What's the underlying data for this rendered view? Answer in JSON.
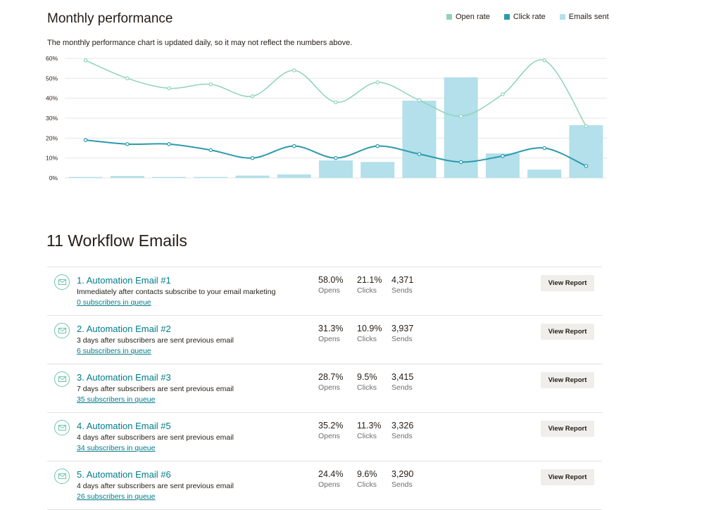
{
  "performance": {
    "title": "Monthly performance",
    "note": "The monthly performance chart is updated daily, so it may not reflect the numbers above."
  },
  "legend": [
    {
      "label": "Open rate",
      "color": "#8fd3bd"
    },
    {
      "label": "Click rate",
      "color": "#2b9aae"
    },
    {
      "label": "Emails sent",
      "color": "#b3e0ea"
    }
  ],
  "chart_data": {
    "type": "bar",
    "y_tick_labels": [
      "0%",
      "10%",
      "20%",
      "30%",
      "40%",
      "50%",
      "60%"
    ],
    "ylim": [
      0,
      60
    ],
    "grid": true,
    "legend_position": "top-right",
    "series": [
      {
        "name": "Emails sent",
        "type": "bar",
        "color": "#b3e0ea",
        "values": [
          0.5,
          1,
          0.5,
          0.5,
          1.2,
          1.8,
          8.8,
          8,
          38.8,
          50.5,
          12.3,
          4.2,
          26.5
        ]
      },
      {
        "name": "Open rate",
        "type": "line",
        "color": "#8fd3bd",
        "values": [
          59,
          50,
          45,
          47,
          41,
          54,
          38,
          48,
          39,
          31,
          42,
          59,
          26
        ]
      },
      {
        "name": "Click rate",
        "type": "line",
        "color": "#2b9aae",
        "values": [
          19,
          17,
          17,
          14,
          10,
          16,
          10,
          16,
          12,
          8,
          11,
          15,
          6
        ]
      }
    ]
  },
  "workflow": {
    "title": "11 Workflow Emails",
    "opens_label": "Opens",
    "clicks_label": "Clicks",
    "sends_label": "Sends",
    "button_label": "View Report",
    "emails": [
      {
        "name": "1. Automation Email #1",
        "desc": "Immediately after contacts subscribe to your email marketing",
        "queue": "0 subscribers in queue",
        "opens": "58.0%",
        "clicks": "21.1%",
        "sends": "4,371"
      },
      {
        "name": "2. Automation Email #2",
        "desc": "3 days after subscribers are sent previous email",
        "queue": "6 subscribers in queue",
        "opens": "31.3%",
        "clicks": "10.9%",
        "sends": "3,937"
      },
      {
        "name": "3. Automation Email #3",
        "desc": "7 days after subscribers are sent previous email",
        "queue": "35 subscribers in queue",
        "opens": "28.7%",
        "clicks": "9.5%",
        "sends": "3,415"
      },
      {
        "name": "4. Automation Email #5",
        "desc": "4 days after subscribers are sent previous email",
        "queue": "34 subscribers in queue",
        "opens": "35.2%",
        "clicks": "11.3%",
        "sends": "3,326"
      },
      {
        "name": "5. Automation Email #6",
        "desc": "4 days after subscribers are sent previous email",
        "queue": "26 subscribers in queue",
        "opens": "24.4%",
        "clicks": "9.6%",
        "sends": "3,290"
      }
    ]
  }
}
